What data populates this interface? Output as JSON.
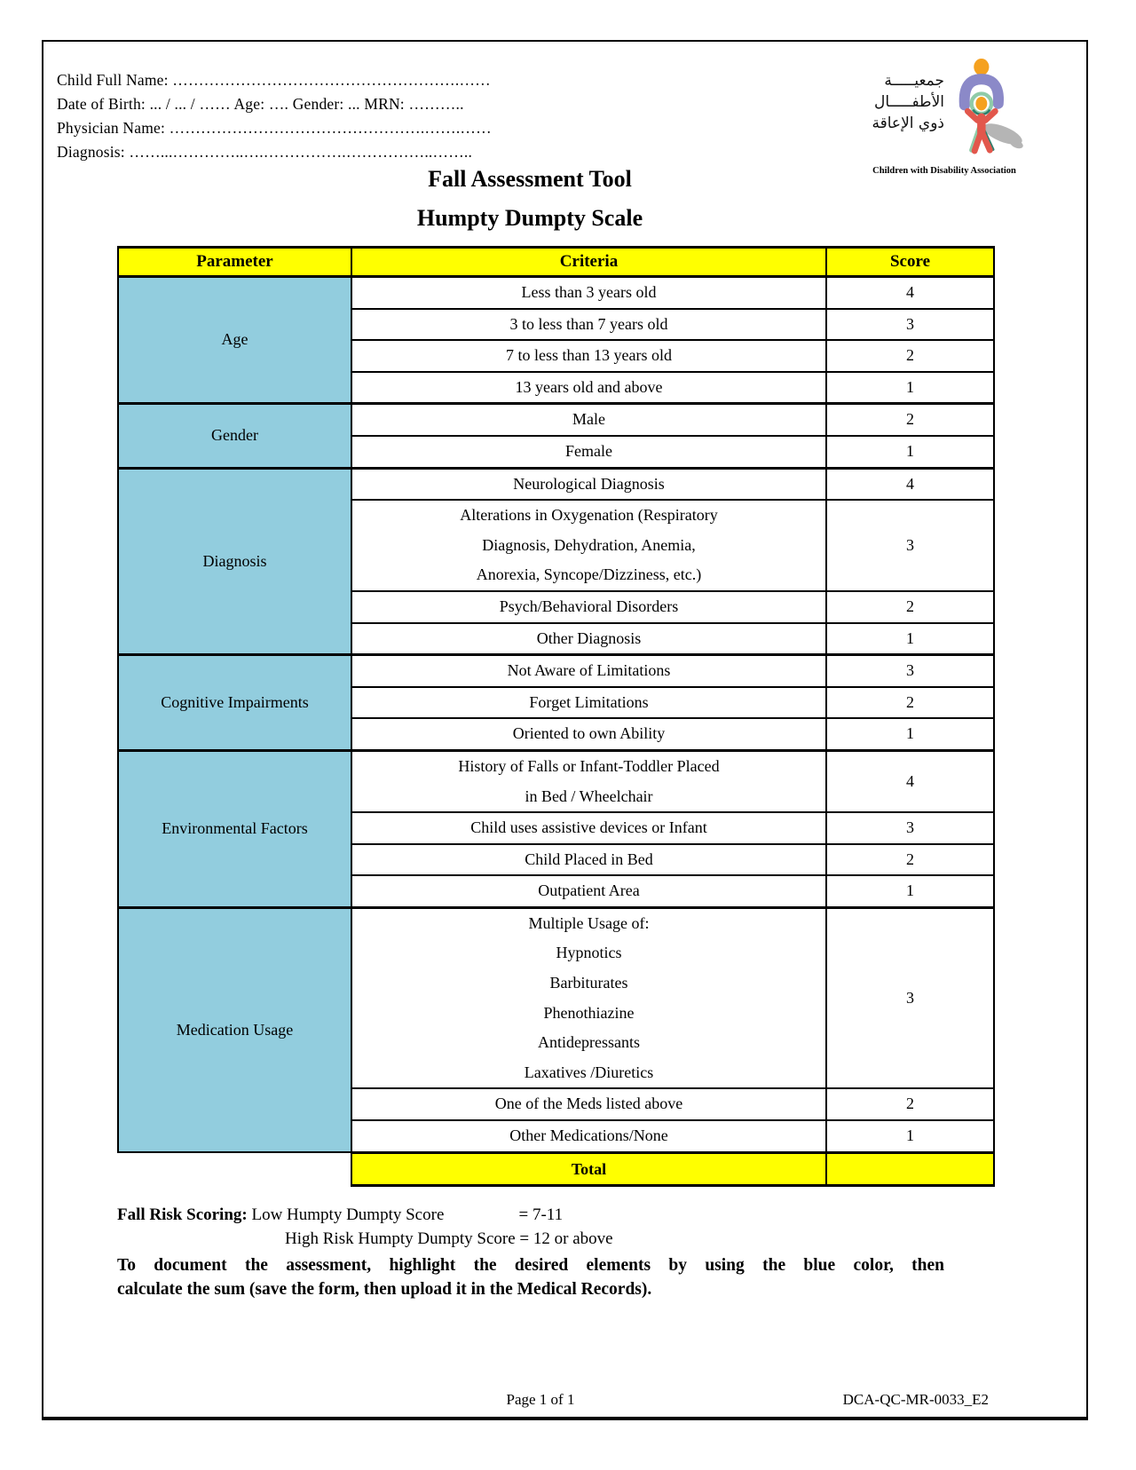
{
  "page": {
    "title1": "Fall Assessment Tool",
    "title2": "Humpty Dumpty Scale",
    "patient_fields": [
      "Child Full Name: ……………………………………………….……",
      "Date of Birth: ... / ... / …… Age: …. Gender: ... MRN: ………..",
      "Physician Name: ………………………………………….…….……",
      "Diagnosis: ……...…………..….…………….……………..…….."
    ]
  },
  "logo": {
    "arabic_lines": [
      "جمعيـــــة",
      "الأطفـــــال",
      "ذوي الإعاقة"
    ],
    "caption": "Children with Disability Association",
    "colors": {
      "orange": "#F5A11F",
      "purple": "#8B89C8",
      "red": "#E2574C",
      "green": "#8FCBA8",
      "teal": "#2F7E6C",
      "shadow": "#B5B5B5"
    }
  },
  "table": {
    "headers": [
      "Parameter",
      "Criteria",
      "Score"
    ],
    "header_bg": "#FFFF00",
    "parameter_bg": "#92CDDE",
    "groups": [
      {
        "parameter": "Age",
        "rows": [
          {
            "criteria": [
              "Less than 3 years old"
            ],
            "score": "4"
          },
          {
            "criteria": [
              "3 to less than 7 years old"
            ],
            "score": "3"
          },
          {
            "criteria": [
              "7 to less than 13 years old"
            ],
            "score": "2"
          },
          {
            "criteria": [
              "13 years old and above"
            ],
            "score": "1"
          }
        ]
      },
      {
        "parameter": "Gender",
        "rows": [
          {
            "criteria": [
              "Male"
            ],
            "score": "2"
          },
          {
            "criteria": [
              "Female"
            ],
            "score": "1"
          }
        ]
      },
      {
        "parameter": "Diagnosis",
        "rows": [
          {
            "criteria": [
              "Neurological Diagnosis"
            ],
            "score": "4"
          },
          {
            "criteria": [
              "Alterations in Oxygenation (Respiratory",
              "Diagnosis, Dehydration, Anemia,",
              "Anorexia, Syncope/Dizziness, etc.)"
            ],
            "score": "3"
          },
          {
            "criteria": [
              "Psych/Behavioral Disorders"
            ],
            "score": "2"
          },
          {
            "criteria": [
              "Other Diagnosis"
            ],
            "score": "1"
          }
        ]
      },
      {
        "parameter": "Cognitive Impairments",
        "rows": [
          {
            "criteria": [
              "Not Aware of Limitations"
            ],
            "score": "3"
          },
          {
            "criteria": [
              "Forget Limitations"
            ],
            "score": "2"
          },
          {
            "criteria": [
              "Oriented to own Ability"
            ],
            "score": "1"
          }
        ]
      },
      {
        "parameter": "Environmental Factors",
        "rows": [
          {
            "criteria": [
              "History of Falls or Infant-Toddler Placed",
              "in Bed / Wheelchair"
            ],
            "score": "4"
          },
          {
            "criteria": [
              "Child uses assistive devices or Infant"
            ],
            "score": "3"
          },
          {
            "criteria": [
              "Child Placed in Bed"
            ],
            "score": "2"
          },
          {
            "criteria": [
              "Outpatient Area"
            ],
            "score": "1"
          }
        ]
      },
      {
        "parameter": "Medication Usage",
        "rows": [
          {
            "criteria": [
              "Multiple Usage of:",
              "Hypnotics",
              "Barbiturates",
              "Phenothiazine",
              "Antidepressants",
              "Laxatives /Diuretics"
            ],
            "score": "3"
          },
          {
            "criteria": [
              "One of the Meds listed above"
            ],
            "score": "2"
          },
          {
            "criteria": [
              "Other Medications/None"
            ],
            "score": "1"
          }
        ]
      }
    ],
    "total_label": "Total",
    "total_score": ""
  },
  "footer": {
    "scoring_label": "Fall Risk Scoring:",
    "low_label": "Low Humpty Dumpty Score",
    "low_value": "= 7-11",
    "high_line": "High Risk Humpty Dumpty Score = 12 or above",
    "note_line1": "To document the assessment, highlight the desired elements by using the blue color, then",
    "note_line2": "calculate the sum (save the form, then upload it in the Medical Records).",
    "page_number": "Page 1 of 1",
    "doc_code": "DCA-QC-MR-0033_E2"
  }
}
